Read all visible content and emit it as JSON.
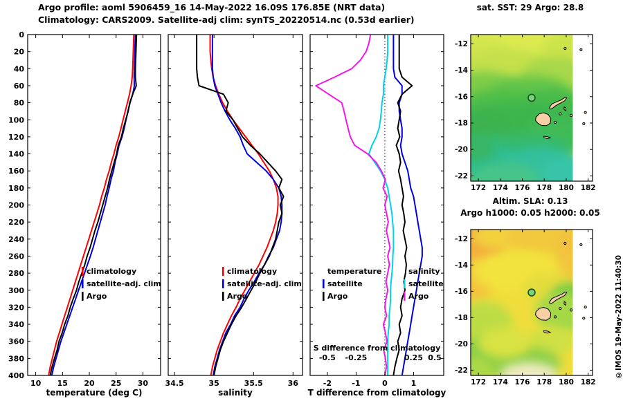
{
  "header": {
    "line1": "Argo profile: aoml 5906459_16 14-May-2022 16.09S 176.85E (NRT data)",
    "line2": "Climatology: CARS2009. Satellite-adj clim: synTS_20220514.nc (0.53d earlier)"
  },
  "copyright": "©IMOS 19-May-2022 11:40:30",
  "colors": {
    "climatology": "#ff0000",
    "satellite": "#0000dd",
    "argo": "#000000",
    "sal_satellite": "#00d2e8",
    "sal_argo": "#f018e8"
  },
  "chart_data": [
    {
      "type": "line",
      "panel": "temperature",
      "xlabel": "temperature (deg C)",
      "x_range": [
        8.5,
        33.3
      ],
      "x_ticks": [
        10,
        15,
        20,
        25,
        30
      ],
      "depth_range": [
        0,
        400
      ],
      "depth_tick_step": 20,
      "show_depth_labels": true,
      "legend": {
        "items": [
          {
            "label": "climatology",
            "color_key": "climatology"
          },
          {
            "label": "satellite-adj. clim",
            "color_key": "satellite"
          },
          {
            "label": "Argo",
            "color_key": "argo"
          }
        ]
      },
      "series": [
        {
          "name": "climatology",
          "color_key": "climatology",
          "depth_start": 0,
          "depth_step": 10,
          "values": [
            28.3,
            28.25,
            28.2,
            28.15,
            28.1,
            28.0,
            27.8,
            27.5,
            27.1,
            26.7,
            26.3,
            25.9,
            25.5,
            25.0,
            24.6,
            24.1,
            23.7,
            23.2,
            22.8,
            22.3,
            21.9,
            21.4,
            20.9,
            20.4,
            19.9,
            19.4,
            18.9,
            18.4,
            17.9,
            17.4,
            16.9,
            16.4,
            15.9,
            15.4,
            14.9,
            14.4,
            13.9,
            13.5,
            13.1,
            12.7,
            12.4
          ]
        },
        {
          "name": "satellite-adj-clim",
          "color_key": "satellite",
          "depth_start": 0,
          "depth_step": 10,
          "values": [
            28.6,
            28.55,
            28.5,
            28.45,
            28.4,
            28.35,
            28.4,
            28.1,
            27.6,
            27.2,
            26.85,
            26.5,
            26.1,
            25.55,
            25.2,
            24.8,
            24.5,
            24.05,
            23.7,
            23.3,
            22.95,
            22.5,
            22.05,
            21.6,
            21.15,
            20.7,
            20.2,
            19.65,
            19.1,
            18.55,
            18.0,
            17.45,
            16.9,
            16.35,
            15.8,
            15.25,
            14.7,
            14.25,
            13.8,
            13.35,
            13.0
          ]
        },
        {
          "name": "argo",
          "color_key": "argo",
          "depth_start": 0,
          "depth_step": 10,
          "values": [
            28.8,
            28.75,
            28.7,
            28.65,
            28.6,
            28.6,
            28.75,
            28.1,
            27.55,
            27.25,
            26.8,
            26.35,
            26.0,
            25.4,
            25.1,
            24.65,
            24.2,
            23.75,
            23.4,
            22.95,
            22.5,
            22.05,
            21.6,
            21.05,
            20.6,
            20.15,
            19.6,
            19.15,
            18.6,
            18.05,
            17.6,
            17.0,
            16.45,
            16.0,
            15.4,
            14.95,
            14.35,
            14.0,
            13.5,
            13.05,
            12.7
          ]
        }
      ]
    },
    {
      "type": "line",
      "panel": "salinity",
      "xlabel": "salinity",
      "x_range": [
        34.42,
        36.12
      ],
      "x_ticks": [
        34.5,
        35,
        35.5,
        36
      ],
      "depth_range": [
        0,
        400
      ],
      "depth_tick_step": 20,
      "show_depth_labels": false,
      "legend": {
        "items": [
          {
            "label": "climatology",
            "color_key": "climatology"
          },
          {
            "label": "satellite-adj. clim",
            "color_key": "satellite"
          },
          {
            "label": "Argo",
            "color_key": "argo"
          }
        ]
      },
      "series": [
        {
          "name": "climatology",
          "color_key": "climatology",
          "depth_start": 0,
          "depth_step": 10,
          "values": [
            34.95,
            34.95,
            34.95,
            34.96,
            34.97,
            34.99,
            35.02,
            35.06,
            35.11,
            35.17,
            35.24,
            35.32,
            35.4,
            35.48,
            35.56,
            35.63,
            35.7,
            35.75,
            35.79,
            35.81,
            35.81,
            35.8,
            35.78,
            35.75,
            35.71,
            35.67,
            35.62,
            35.57,
            35.51,
            35.45,
            35.39,
            35.33,
            35.28,
            35.22,
            35.17,
            35.12,
            35.08,
            35.04,
            35.01,
            34.98,
            34.96
          ]
        },
        {
          "name": "satellite-adj-clim",
          "color_key": "satellite",
          "depth_start": 0,
          "depth_step": 10,
          "values": [
            34.98,
            34.98,
            34.98,
            34.98,
            34.98,
            34.99,
            35.01,
            35.05,
            35.09,
            35.14,
            35.2,
            35.27,
            35.33,
            35.37,
            35.42,
            35.54,
            35.66,
            35.75,
            35.82,
            35.85,
            35.86,
            35.86,
            35.85,
            35.83,
            35.79,
            35.75,
            35.69,
            35.64,
            35.57,
            35.51,
            35.44,
            35.38,
            35.33,
            35.26,
            35.21,
            35.15,
            35.11,
            35.07,
            35.04,
            35.01,
            34.99
          ]
        },
        {
          "name": "argo",
          "color_key": "argo",
          "depth_start": 0,
          "depth_step": 10,
          "values": [
            34.78,
            34.78,
            34.78,
            34.78,
            34.78,
            34.79,
            34.81,
            35.12,
            35.18,
            35.15,
            35.24,
            35.3,
            35.36,
            35.46,
            35.58,
            35.68,
            35.78,
            35.86,
            35.82,
            35.88,
            35.84,
            35.86,
            35.82,
            35.8,
            35.78,
            35.74,
            35.7,
            35.64,
            35.58,
            35.53,
            35.47,
            35.41,
            35.35,
            35.28,
            35.22,
            35.17,
            35.12,
            35.08,
            35.05,
            35.02,
            35.0
          ]
        }
      ]
    },
    {
      "type": "line",
      "panel": "difference",
      "xlabel": "T difference from climatology",
      "inner_label": "S difference from climatology",
      "x_range": [
        -2.6,
        2.05
      ],
      "x_ticks": [
        -2,
        -1,
        0,
        1
      ],
      "zero_line": true,
      "s_ticks": [
        {
          "t": -2,
          "label": "-0.5"
        },
        {
          "t": -1,
          "label": "-0.25"
        },
        {
          "t": 1,
          "label": "0.25"
        },
        {
          "t": 2,
          "label": "0.5"
        }
      ],
      "depth_range": [
        0,
        400
      ],
      "depth_tick_step": 20,
      "show_depth_labels": false,
      "legend_groups": [
        {
          "header": "temperature",
          "items": [
            {
              "label": "satellite",
              "color_key": "satellite"
            },
            {
              "label": "Argo",
              "color_key": "argo"
            }
          ]
        },
        {
          "header": "salinity",
          "items": [
            {
              "label": "satellite",
              "color_key": "sal_satellite"
            },
            {
              "label": "Argo",
              "color_key": "sal_argo"
            }
          ]
        }
      ],
      "series": [
        {
          "name": "t-diff-satellite",
          "color_key": "satellite",
          "depth_start": 0,
          "depth_step": 10,
          "x_scale": 1,
          "values": [
            0.3,
            0.3,
            0.3,
            0.3,
            0.3,
            0.35,
            0.6,
            0.6,
            0.5,
            0.5,
            0.55,
            0.6,
            0.6,
            0.55,
            0.6,
            0.7,
            0.8,
            0.85,
            0.9,
            1.0,
            1.05,
            1.1,
            1.15,
            1.2,
            1.25,
            1.3,
            1.3,
            1.25,
            1.2,
            1.15,
            1.1,
            1.05,
            1.0,
            0.95,
            0.9,
            0.85,
            0.8,
            0.75,
            0.7,
            0.65,
            0.6
          ]
        },
        {
          "name": "s-diff-satellite",
          "color_key": "sal_satellite",
          "depth_start": 0,
          "depth_step": 10,
          "x_scale": 4,
          "values": [
            0.025,
            0.025,
            0.025,
            0.02,
            0.012,
            0.0,
            -0.012,
            -0.012,
            -0.025,
            -0.03,
            -0.038,
            -0.05,
            -0.075,
            -0.112,
            -0.138,
            -0.088,
            -0.038,
            0.0,
            0.025,
            0.038,
            0.05,
            0.062,
            0.068,
            0.075,
            0.075,
            0.075,
            0.07,
            0.068,
            0.062,
            0.055,
            0.05,
            0.05,
            0.045,
            0.038,
            0.038,
            0.03,
            0.025,
            0.025,
            0.025,
            0.025,
            0.025
          ]
        },
        {
          "name": "t-diff-argo",
          "color_key": "argo",
          "depth_start": 0,
          "depth_step": 10,
          "x_scale": 1,
          "values": [
            0.5,
            0.5,
            0.5,
            0.5,
            0.5,
            0.6,
            0.95,
            0.6,
            0.45,
            0.55,
            0.5,
            0.45,
            0.52,
            0.4,
            0.5,
            0.55,
            0.48,
            0.55,
            0.6,
            0.65,
            0.6,
            0.66,
            0.7,
            0.64,
            0.7,
            0.76,
            0.7,
            0.75,
            0.72,
            0.66,
            0.7,
            0.6,
            0.55,
            0.6,
            0.5,
            0.55,
            0.45,
            0.5,
            0.42,
            0.35,
            0.3
          ]
        },
        {
          "name": "s-diff-argo",
          "color_key": "sal_argo",
          "depth_start": 0,
          "depth_step": 10,
          "x_scale": 4,
          "values": [
            -0.125,
            -0.138,
            -0.163,
            -0.213,
            -0.288,
            -0.438,
            -0.6,
            -0.488,
            -0.375,
            -0.355,
            -0.338,
            -0.32,
            -0.3,
            -0.263,
            -0.15,
            -0.075,
            -0.03,
            0.005,
            -0.015,
            0.02,
            0.0,
            0.015,
            0.03,
            0.013,
            0.03,
            0.045,
            0.025,
            0.04,
            0.025,
            0.01,
            0.025,
            0.01,
            0.0,
            0.015,
            -0.013,
            0.005,
            0.02,
            -0.01,
            0.005,
            0.015,
            0.0
          ]
        }
      ]
    }
  ],
  "maps": [
    {
      "name": "sst",
      "title": "sat. SST: 29 Argo: 28.8",
      "x_ticks": [
        172,
        174,
        176,
        178,
        180,
        182
      ],
      "y_ticks": [
        -12,
        -14,
        -16,
        -18,
        -20,
        -22
      ],
      "marker": {
        "lon": 176.85,
        "lat": -16.09
      }
    },
    {
      "name": "sla",
      "title_line1": "Altim. SLA: 0.13",
      "title_line2": "Argo h1000: 0.05 h2000: 0.05",
      "x_ticks": [
        172,
        174,
        176,
        178,
        180,
        182
      ],
      "y_ticks": [
        -12,
        -14,
        -16,
        -18,
        -20,
        -22
      ],
      "marker": {
        "lon": 176.85,
        "lat": -16.09
      }
    }
  ]
}
